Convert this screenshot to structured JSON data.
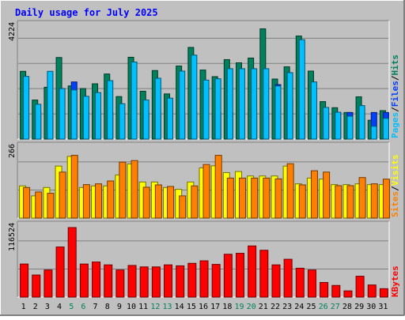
{
  "title": "Daily usage for July 2025",
  "colors": {
    "background": "#c0c0c0",
    "frame": "#ffffff",
    "title": "#0000ff",
    "hits": "#00805c",
    "files": "#0040ff",
    "pages": "#00c0ff",
    "visits": "#ffff00",
    "sites": "#ff8000",
    "kbytes": "#ff0000",
    "weekday_label": "#000000",
    "weekend_label": "#00805c"
  },
  "legend": {
    "pages": "Pages",
    "files": "Files",
    "hits": "Hits",
    "visits": "Visits",
    "sites": "Sites",
    "kbytes": "KBytes",
    "sep": "/"
  },
  "chart_data": {
    "type": "bar",
    "title": "Daily usage for July 2025",
    "categories": [
      "1",
      "2",
      "3",
      "4",
      "5",
      "6",
      "7",
      "8",
      "9",
      "10",
      "11",
      "12",
      "13",
      "14",
      "15",
      "16",
      "17",
      "18",
      "19",
      "20",
      "21",
      "22",
      "23",
      "24",
      "25",
      "26",
      "27",
      "28",
      "29",
      "30",
      "31"
    ],
    "weekend_days": [
      "5",
      "6",
      "12",
      "13",
      "19",
      "20",
      "26",
      "27"
    ],
    "panels": [
      {
        "name": "hits-files-pages",
        "ymax_label": "4224",
        "ymax": 4224,
        "series": [
          {
            "name": "Hits",
            "color": "#00805c",
            "values": [
              2550,
              1470,
              1950,
              3070,
              2000,
              1900,
              2080,
              2450,
              1600,
              3080,
              1800,
              2580,
              1700,
              2750,
              3450,
              2600,
              2350,
              2990,
              2870,
              3050,
              4150,
              2260,
              2720,
              3880,
              2560,
              1410,
              1180,
              1000,
              1590,
              710,
              1070
            ]
          },
          {
            "name": "Files",
            "color": "#0040ff",
            "values": [
              1000,
              1000,
              1000,
              1900,
              2150,
              1000,
              1000,
              1000,
              1000,
              1000,
              1000,
              1000,
              1000,
              1000,
              1000,
              1000,
              1000,
              1000,
              1000,
              1000,
              1000,
              2050,
              1500,
              1000,
              1000,
              1000,
              1000,
              1000,
              1000,
              1000,
              1000
            ]
          },
          {
            "name": "Pages",
            "color": "#00c0ff",
            "values": [
              2360,
              1310,
              2550,
              1900,
              1850,
              1610,
              1750,
              2200,
              1330,
              2900,
              1470,
              2290,
              1540,
              2560,
              3160,
              2220,
              2270,
              2650,
              2650,
              2650,
              2650,
              2000,
              2500,
              3740,
              2150,
              1190,
              1010,
              860,
              1260,
              480,
              780
            ]
          }
        ]
      },
      {
        "name": "visits-sites",
        "ymax_label": "266",
        "ymax": 266,
        "series": [
          {
            "name": "Visits",
            "color": "#ffff00",
            "values": [
              123,
              85,
              117,
              199,
              236,
              117,
              123,
              123,
              165,
              207,
              138,
              138,
              117,
              110,
              138,
              192,
              200,
              174,
              178,
              161,
              161,
              161,
              199,
              131,
              153,
              149,
              128,
              128,
              131,
              128,
              128
            ]
          },
          {
            "name": "Sites",
            "color": "#ff8000",
            "values": [
              117,
              100,
              95,
              176,
              240,
              128,
              131,
              142,
              214,
              220,
              118,
              127,
              121,
              85,
              123,
              205,
              240,
              153,
              153,
              153,
              153,
              150,
              208,
              127,
              181,
              176,
              124,
              124,
              155,
              131,
              149
            ]
          }
        ]
      },
      {
        "name": "kbytes",
        "ymax_label": "116524",
        "ymax": 116524,
        "series": [
          {
            "name": "KBytes",
            "color": "#ff0000",
            "values": [
              55400,
              37000,
              45400,
              84000,
              116524,
              55400,
              58800,
              54000,
              45400,
              53000,
              50600,
              50600,
              54000,
              52400,
              56600,
              60800,
              54800,
              71800,
              73400,
              85700,
              78500,
              54000,
              63400,
              48400,
              45400,
              24500,
              19500,
              10400,
              35000,
              20300,
              14100
            ]
          }
        ]
      }
    ],
    "grid": true
  }
}
